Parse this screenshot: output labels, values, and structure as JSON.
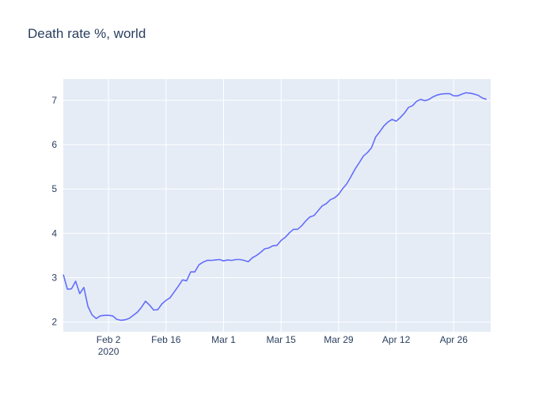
{
  "chart_data": {
    "type": "line",
    "title": "Death rate %, world",
    "xlabel": "",
    "ylabel": "",
    "x_start": "2020-01-22",
    "x_end": "2020-05-05",
    "xlim": [
      "2020-01-22",
      "2020-05-05"
    ],
    "ylim": [
      1.78,
      7.48
    ],
    "grid": true,
    "legend": "none",
    "x_ticks": [
      {
        "date": "2020-02-02",
        "label": "Feb 2",
        "sublabel": "2020"
      },
      {
        "date": "2020-02-16",
        "label": "Feb 16"
      },
      {
        "date": "2020-03-01",
        "label": "Mar 1"
      },
      {
        "date": "2020-03-15",
        "label": "Mar 15"
      },
      {
        "date": "2020-03-29",
        "label": "Mar 29"
      },
      {
        "date": "2020-04-12",
        "label": "Apr 12"
      },
      {
        "date": "2020-04-26",
        "label": "Apr 26"
      }
    ],
    "y_ticks": [
      2,
      3,
      4,
      5,
      6,
      7
    ],
    "series": [
      {
        "name": "",
        "color": "#636efa",
        "values": [
          3.07,
          2.74,
          2.75,
          2.92,
          2.64,
          2.78,
          2.35,
          2.16,
          2.08,
          2.14,
          2.15,
          2.15,
          2.14,
          2.06,
          2.04,
          2.05,
          2.08,
          2.15,
          2.22,
          2.33,
          2.47,
          2.38,
          2.27,
          2.28,
          2.41,
          2.49,
          2.55,
          2.68,
          2.81,
          2.95,
          2.93,
          3.13,
          3.13,
          3.29,
          3.35,
          3.39,
          3.39,
          3.4,
          3.41,
          3.38,
          3.4,
          3.39,
          3.41,
          3.41,
          3.39,
          3.36,
          3.45,
          3.5,
          3.57,
          3.65,
          3.67,
          3.72,
          3.73,
          3.84,
          3.91,
          4.01,
          4.09,
          4.09,
          4.17,
          4.28,
          4.37,
          4.4,
          4.51,
          4.62,
          4.67,
          4.76,
          4.8,
          4.88,
          5.01,
          5.12,
          5.28,
          5.45,
          5.59,
          5.74,
          5.82,
          5.93,
          6.17,
          6.29,
          6.42,
          6.51,
          6.57,
          6.53,
          6.61,
          6.71,
          6.84,
          6.88,
          6.98,
          7.02,
          6.99,
          7.02,
          7.08,
          7.12,
          7.14,
          7.15,
          7.15,
          7.1,
          7.1,
          7.14,
          7.17,
          7.16,
          7.14,
          7.11,
          7.05,
          7.02
        ]
      }
    ]
  }
}
